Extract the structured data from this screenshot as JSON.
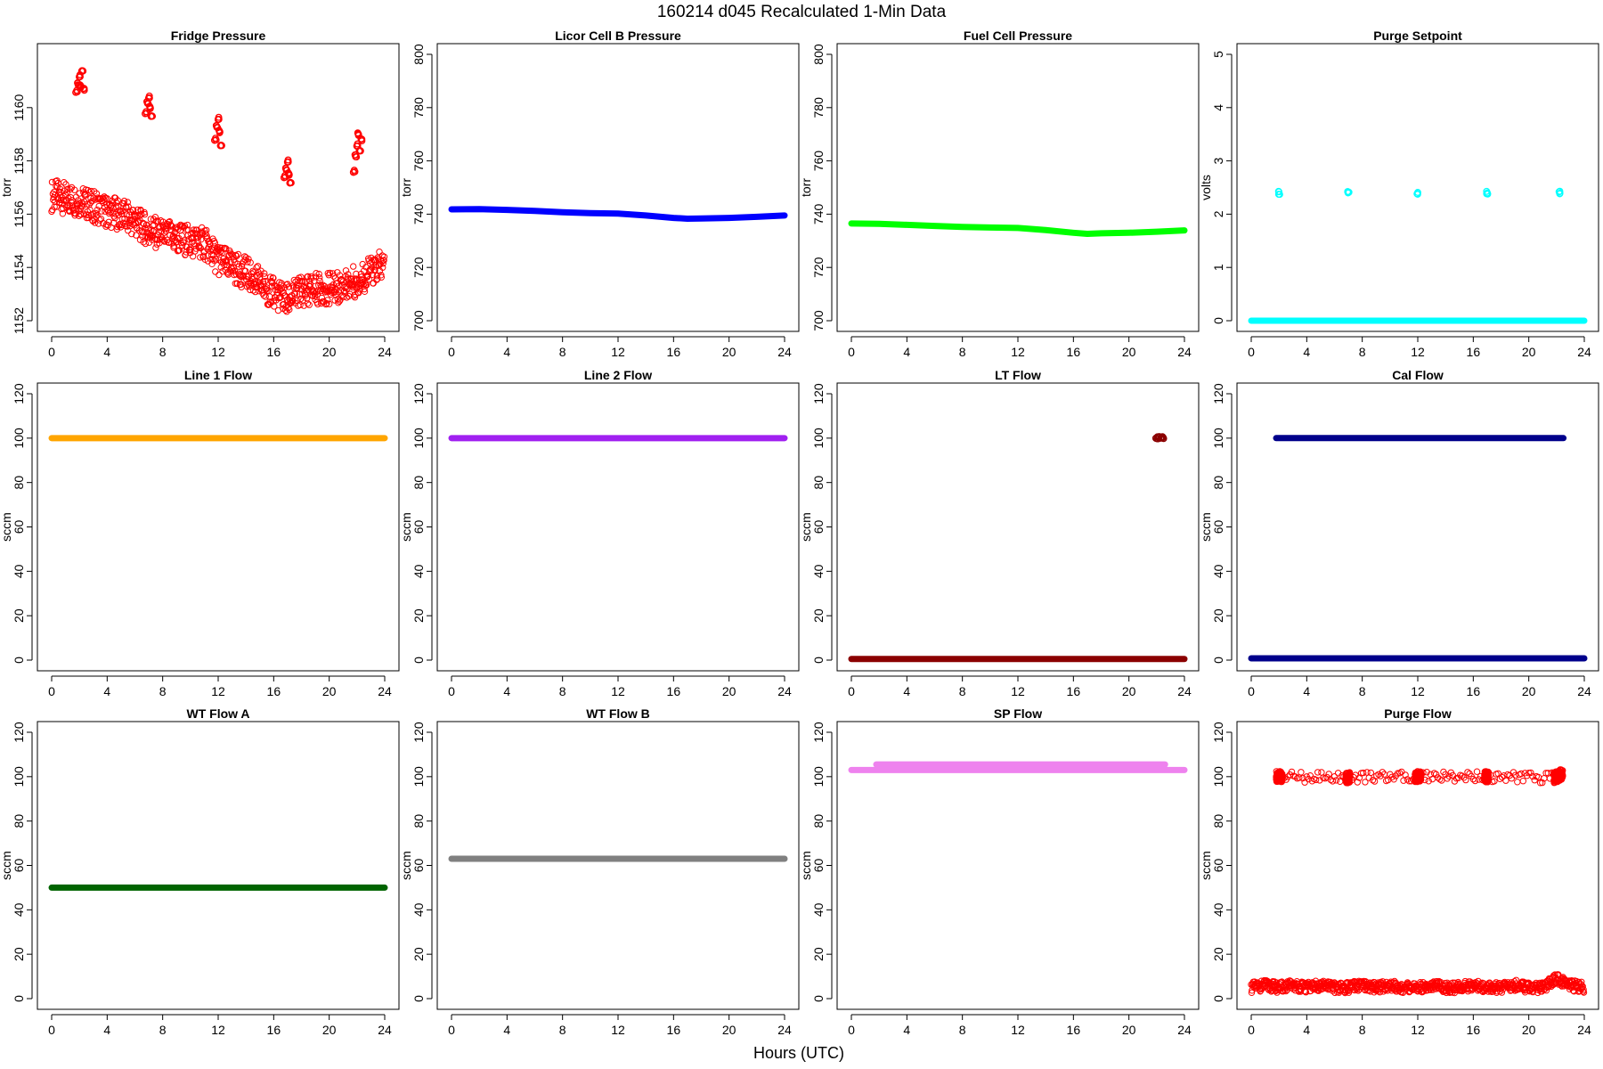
{
  "figure": {
    "title": "160214   d045   Recalculated 1-Min Data",
    "xlabel": "Hours (UTC)"
  },
  "chart_data": [
    {
      "type": "scatter",
      "title": "Fridge Pressure",
      "ylabel": "torr",
      "color": "#ff0000",
      "marker": "open-circle",
      "xlim": [
        0,
        24
      ],
      "ylim": [
        1152,
        1162
      ],
      "xticks": [
        0,
        4,
        8,
        12,
        16,
        20,
        24
      ],
      "yticks": [
        1152,
        1154,
        1156,
        1158,
        1160
      ],
      "series": [
        {
          "x": [
            0,
            1,
            2,
            3,
            4,
            5,
            6,
            7,
            8,
            9,
            10,
            11,
            12,
            13,
            14,
            15,
            16,
            17,
            18,
            19,
            20,
            21,
            22,
            23,
            24
          ],
          "y": [
            1156.7,
            1156.6,
            1156.5,
            1156.3,
            1156.1,
            1156.0,
            1155.7,
            1155.4,
            1155.2,
            1155.1,
            1155.0,
            1154.9,
            1154.3,
            1154.0,
            1153.8,
            1153.4,
            1153.0,
            1152.8,
            1153.1,
            1153.2,
            1153.2,
            1153.3,
            1153.5,
            1153.8,
            1154.1
          ]
        },
        {
          "x": [
            1.8,
            1.9,
            2.0,
            2.1,
            2.2,
            2.3
          ],
          "y": [
            1160.6,
            1160.9,
            1161.2,
            1160.8,
            1161.4,
            1160.7
          ]
        },
        {
          "x": [
            6.8,
            6.9,
            7.0,
            7.1,
            7.2
          ],
          "y": [
            1159.8,
            1160.2,
            1160.4,
            1160.0,
            1159.7
          ]
        },
        {
          "x": [
            11.8,
            11.9,
            12.0,
            12.1,
            12.2
          ],
          "y": [
            1158.8,
            1159.3,
            1159.6,
            1159.1,
            1158.6
          ]
        },
        {
          "x": [
            16.8,
            16.9,
            17.0,
            17.1,
            17.2
          ],
          "y": [
            1157.4,
            1157.7,
            1158.0,
            1157.5,
            1157.2
          ]
        },
        {
          "x": [
            21.8,
            21.9,
            22.0,
            22.1,
            22.2,
            22.3
          ],
          "y": [
            1157.6,
            1158.2,
            1158.6,
            1159.0,
            1158.4,
            1158.8
          ]
        }
      ]
    },
    {
      "type": "scatter",
      "title": "Licor Cell B Pressure",
      "ylabel": "torr",
      "color": "#0000ff",
      "marker": "open-circle",
      "xlim": [
        0,
        24
      ],
      "ylim": [
        700,
        800
      ],
      "xticks": [
        0,
        4,
        8,
        12,
        16,
        20,
        24
      ],
      "yticks": [
        700,
        720,
        740,
        760,
        780,
        800
      ],
      "series": [
        {
          "x": [
            0,
            2,
            4,
            6,
            8,
            10,
            12,
            14,
            16,
            17,
            18,
            20,
            22,
            24
          ],
          "y": [
            741.8,
            741.9,
            741.6,
            741.2,
            740.7,
            740.4,
            740.2,
            739.5,
            738.6,
            738.3,
            738.4,
            738.6,
            739.0,
            739.5
          ]
        }
      ]
    },
    {
      "type": "scatter",
      "title": "Fuel Cell Pressure",
      "ylabel": "torr",
      "color": "#00ff00",
      "marker": "open-circle",
      "xlim": [
        0,
        24
      ],
      "ylim": [
        700,
        800
      ],
      "xticks": [
        0,
        4,
        8,
        12,
        16,
        20,
        24
      ],
      "yticks": [
        700,
        720,
        740,
        760,
        780,
        800
      ],
      "series": [
        {
          "x": [
            0,
            2,
            4,
            6,
            8,
            10,
            12,
            14,
            16,
            17,
            18,
            20,
            22,
            24
          ],
          "y": [
            736.5,
            736.4,
            736.0,
            735.6,
            735.2,
            735.0,
            734.8,
            734.0,
            733.0,
            732.6,
            732.8,
            733.0,
            733.4,
            733.9
          ]
        }
      ]
    },
    {
      "type": "scatter",
      "title": "Purge Setpoint",
      "ylabel": "volts",
      "color": "#00ffff",
      "marker": "open-circle",
      "xlim": [
        0,
        24
      ],
      "ylim": [
        0,
        5
      ],
      "xticks": [
        0,
        4,
        8,
        12,
        16,
        20,
        24
      ],
      "yticks": [
        0,
        1,
        2,
        3,
        4,
        5
      ],
      "series": [
        {
          "x": [
            0,
            24
          ],
          "y": [
            0,
            0
          ],
          "line": true
        },
        {
          "x": [
            2.0,
            7.0,
            12.0,
            17.0,
            22.2
          ],
          "y": [
            2.4,
            2.4,
            2.4,
            2.4,
            2.4
          ]
        }
      ]
    },
    {
      "type": "scatter",
      "title": "Line 1 Flow",
      "ylabel": "sccm",
      "color": "#ffa500",
      "marker": "open-circle",
      "xlim": [
        0,
        24
      ],
      "ylim": [
        0,
        120
      ],
      "xticks": [
        0,
        4,
        8,
        12,
        16,
        20,
        24
      ],
      "yticks": [
        0,
        20,
        40,
        60,
        80,
        100,
        120
      ],
      "series": [
        {
          "x": [
            0,
            24
          ],
          "y": [
            100,
            100
          ],
          "line": true
        }
      ]
    },
    {
      "type": "scatter",
      "title": "Line 2 Flow",
      "ylabel": "sccm",
      "color": "#a020f0",
      "marker": "open-circle",
      "xlim": [
        0,
        24
      ],
      "ylim": [
        0,
        120
      ],
      "xticks": [
        0,
        4,
        8,
        12,
        16,
        20,
        24
      ],
      "yticks": [
        0,
        20,
        40,
        60,
        80,
        100,
        120
      ],
      "series": [
        {
          "x": [
            0,
            24
          ],
          "y": [
            100,
            100
          ],
          "line": true
        }
      ]
    },
    {
      "type": "scatter",
      "title": "LT Flow",
      "ylabel": "sccm",
      "color": "#8b0000",
      "marker": "open-circle",
      "xlim": [
        0,
        24
      ],
      "ylim": [
        0,
        120
      ],
      "xticks": [
        0,
        4,
        8,
        12,
        16,
        20,
        24
      ],
      "yticks": [
        0,
        20,
        40,
        60,
        80,
        100,
        120
      ],
      "series": [
        {
          "x": [
            0,
            24
          ],
          "y": [
            0.5,
            0.5
          ],
          "line": true
        },
        {
          "x": [
            22.0,
            22.15,
            22.3,
            22.45
          ],
          "y": [
            100,
            100,
            100,
            100
          ]
        }
      ]
    },
    {
      "type": "scatter",
      "title": "Cal Flow",
      "ylabel": "sccm",
      "color": "#00008b",
      "marker": "open-circle",
      "xlim": [
        0,
        24
      ],
      "ylim": [
        0,
        120
      ],
      "xticks": [
        0,
        4,
        8,
        12,
        16,
        20,
        24
      ],
      "yticks": [
        0,
        20,
        40,
        60,
        80,
        100,
        120
      ],
      "series": [
        {
          "x": [
            0,
            24
          ],
          "y": [
            0.8,
            0.8
          ],
          "line": true
        },
        {
          "x": [
            1.8,
            1.95,
            2.1,
            2.25,
            2.4,
            6.8,
            6.95,
            7.1,
            7.25,
            11.8,
            11.95,
            12.1,
            12.25,
            12.4,
            16.8,
            16.95,
            17.1,
            17.25,
            21.8,
            21.95,
            22.1,
            22.5
          ],
          "y": [
            100,
            100,
            100,
            100,
            100,
            100,
            100,
            100,
            100,
            100,
            100,
            100,
            100,
            100,
            100,
            100,
            100,
            100,
            100,
            100,
            100,
            100
          ]
        }
      ]
    },
    {
      "type": "scatter",
      "title": "WT Flow A",
      "ylabel": "sccm",
      "color": "#006400",
      "marker": "open-circle",
      "xlim": [
        0,
        24
      ],
      "ylim": [
        0,
        120
      ],
      "xticks": [
        0,
        4,
        8,
        12,
        16,
        20,
        24
      ],
      "yticks": [
        0,
        20,
        40,
        60,
        80,
        100,
        120
      ],
      "series": [
        {
          "x": [
            0,
            24
          ],
          "y": [
            50,
            50
          ],
          "line": true
        }
      ]
    },
    {
      "type": "scatter",
      "title": "WT Flow B",
      "ylabel": "sccm",
      "color": "#808080",
      "marker": "open-circle",
      "xlim": [
        0,
        24
      ],
      "ylim": [
        0,
        120
      ],
      "xticks": [
        0,
        4,
        8,
        12,
        16,
        20,
        24
      ],
      "yticks": [
        0,
        20,
        40,
        60,
        80,
        100,
        120
      ],
      "series": [
        {
          "x": [
            0,
            24
          ],
          "y": [
            63,
            63
          ],
          "line": true
        }
      ]
    },
    {
      "type": "scatter",
      "title": "SP Flow",
      "ylabel": "sccm",
      "color": "#ee82ee",
      "marker": "open-circle",
      "xlim": [
        0,
        24
      ],
      "ylim": [
        0,
        120
      ],
      "xticks": [
        0,
        4,
        8,
        12,
        16,
        20,
        24
      ],
      "yticks": [
        0,
        20,
        40,
        60,
        80,
        100,
        120
      ],
      "series": [
        {
          "x": [
            0,
            24
          ],
          "y": [
            103,
            103
          ],
          "line": true
        },
        {
          "x": [
            1.8,
            2.0,
            2.2,
            2.4,
            6.8,
            7.0,
            7.2,
            11.8,
            12.0,
            12.2,
            12.4,
            16.8,
            17.0,
            17.2,
            21.8,
            22.0,
            22.2,
            22.4,
            22.6
          ],
          "y": [
            105.5,
            105.5,
            105.5,
            105.5,
            105.5,
            105.5,
            105.5,
            105.5,
            105.5,
            105.5,
            105.5,
            105.5,
            105.5,
            105.5,
            105.5,
            105.5,
            105.5,
            105.5,
            105.5
          ]
        }
      ]
    },
    {
      "type": "scatter",
      "title": "Purge Flow",
      "ylabel": "sccm",
      "color": "#ff0000",
      "marker": "open-circle",
      "xlim": [
        0,
        24
      ],
      "ylim": [
        0,
        120
      ],
      "xticks": [
        0,
        4,
        8,
        12,
        16,
        20,
        24
      ],
      "yticks": [
        0,
        20,
        40,
        60,
        80,
        100,
        120
      ],
      "series": [
        {
          "x": [
            0,
            1,
            2,
            3,
            4,
            5,
            6,
            7,
            8,
            9,
            10,
            11,
            12,
            13,
            14,
            15,
            16,
            17,
            18,
            19,
            20,
            21,
            22,
            23,
            24
          ],
          "y": [
            5,
            6,
            5,
            6,
            5,
            6,
            5,
            5,
            6,
            5,
            6,
            5,
            5,
            6,
            5,
            5,
            6,
            5,
            5,
            6,
            5,
            5,
            9,
            6,
            5
          ]
        },
        {
          "x": [
            1.8,
            1.95,
            2.1,
            2.25,
            6.8,
            6.95,
            7.1,
            11.8,
            11.95,
            12.1,
            12.25,
            16.8,
            16.95,
            17.1,
            21.8,
            21.95,
            22.1,
            22.3,
            22.45
          ],
          "y": [
            100,
            100,
            100,
            100,
            99.5,
            99.5,
            99.5,
            100,
            100,
            100,
            100,
            100,
            100,
            100,
            99.5,
            100,
            100,
            101,
            100.5
          ]
        }
      ]
    }
  ]
}
